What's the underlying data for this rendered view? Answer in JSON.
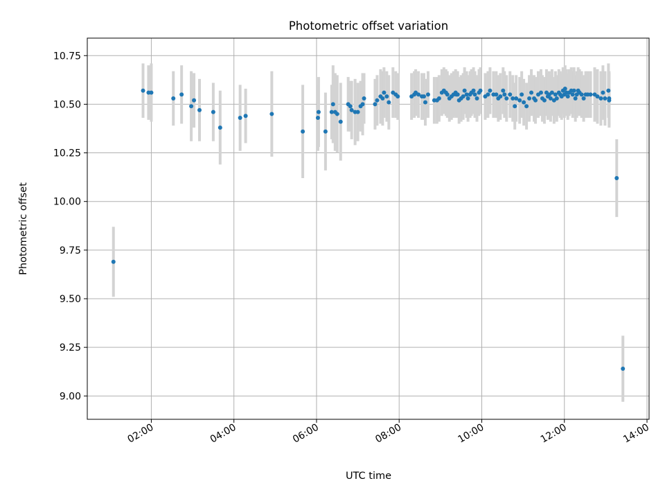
{
  "chart_data": {
    "type": "scatter",
    "title": "Photometric offset variation",
    "xlabel": "UTC time",
    "ylabel": "Photometric offset",
    "x_axis": "time (HH:MM)",
    "xlim": [
      "00:27",
      "14:03"
    ],
    "ylim": [
      8.88,
      10.84
    ],
    "x_ticks": [
      "02:00",
      "04:00",
      "06:00",
      "08:00",
      "10:00",
      "12:00",
      "14:00"
    ],
    "y_ticks": [
      9.0,
      9.25,
      9.5,
      9.75,
      10.0,
      10.25,
      10.5,
      10.75
    ],
    "grid": true,
    "marker_color": "#1f77b4",
    "errorbar_color": "#d3d3d3",
    "series": [
      {
        "x": [
          "01:05",
          "01:48",
          "01:56",
          "02:00",
          "02:32",
          "02:44",
          "02:58",
          "03:02",
          "03:10",
          "03:30",
          "03:40",
          "04:09",
          "04:17",
          "04:55",
          "05:40",
          "06:02",
          "06:03",
          "06:13",
          "06:22",
          "06:24",
          "06:27",
          "06:30",
          "06:35",
          "06:46",
          "06:49",
          "06:51",
          "06:56",
          "07:00",
          "07:04",
          "07:07",
          "07:09",
          "07:25",
          "07:28",
          "07:33",
          "07:36",
          "07:38",
          "07:42",
          "07:45",
          "07:51",
          "07:55",
          "07:58",
          "08:18",
          "08:22",
          "08:24",
          "08:28",
          "08:33",
          "08:36",
          "08:38",
          "08:42",
          "08:51",
          "08:55",
          "08:58",
          "09:02",
          "09:05",
          "09:08",
          "09:10",
          "09:13",
          "09:16",
          "09:19",
          "09:22",
          "09:23",
          "09:25",
          "09:27",
          "09:30",
          "09:33",
          "09:35",
          "09:38",
          "09:40",
          "09:43",
          "09:45",
          "09:48",
          "09:50",
          "09:53",
          "09:56",
          "09:58",
          "10:05",
          "10:09",
          "10:12",
          "10:17",
          "10:21",
          "10:24",
          "10:27",
          "10:31",
          "10:33",
          "10:36",
          "10:41",
          "10:45",
          "10:48",
          "10:50",
          "10:55",
          "10:58",
          "11:01",
          "11:05",
          "11:09",
          "11:12",
          "11:16",
          "11:18",
          "11:22",
          "11:26",
          "11:28",
          "11:31",
          "11:34",
          "11:36",
          "11:38",
          "11:40",
          "11:42",
          "11:45",
          "11:47",
          "11:49",
          "11:52",
          "11:54",
          "11:56",
          "11:58",
          "12:00",
          "12:01",
          "12:03",
          "12:05",
          "12:07",
          "12:10",
          "12:12",
          "12:14",
          "12:16",
          "12:18",
          "12:20",
          "12:22",
          "12:25",
          "12:28",
          "12:31",
          "12:34",
          "12:38",
          "12:44",
          "12:48",
          "12:53",
          "12:56",
          "12:59",
          "13:04",
          "13:05",
          "13:05",
          "13:16",
          "13:25"
        ],
        "y": [
          9.69,
          10.57,
          10.56,
          10.56,
          10.53,
          10.55,
          10.49,
          10.52,
          10.47,
          10.46,
          10.38,
          10.43,
          10.44,
          10.45,
          10.36,
          10.43,
          10.46,
          10.36,
          10.46,
          10.5,
          10.46,
          10.45,
          10.41,
          10.5,
          10.49,
          10.47,
          10.46,
          10.46,
          10.49,
          10.5,
          10.53,
          10.5,
          10.52,
          10.54,
          10.53,
          10.56,
          10.54,
          10.51,
          10.56,
          10.55,
          10.54,
          10.54,
          10.55,
          10.56,
          10.55,
          10.54,
          10.54,
          10.51,
          10.55,
          10.52,
          10.52,
          10.53,
          10.56,
          10.57,
          10.56,
          10.55,
          10.53,
          10.54,
          10.55,
          10.56,
          10.55,
          10.55,
          10.52,
          10.53,
          10.54,
          10.57,
          10.55,
          10.53,
          10.55,
          10.56,
          10.57,
          10.55,
          10.53,
          10.56,
          10.57,
          10.54,
          10.55,
          10.57,
          10.55,
          10.55,
          10.53,
          10.54,
          10.57,
          10.55,
          10.53,
          10.55,
          10.53,
          10.49,
          10.53,
          10.52,
          10.55,
          10.51,
          10.49,
          10.53,
          10.56,
          10.53,
          10.52,
          10.55,
          10.56,
          10.53,
          10.52,
          10.56,
          10.54,
          10.55,
          10.53,
          10.56,
          10.52,
          10.55,
          10.53,
          10.56,
          10.55,
          10.54,
          10.57,
          10.55,
          10.58,
          10.56,
          10.54,
          10.56,
          10.57,
          10.55,
          10.57,
          10.53,
          10.55,
          10.57,
          10.56,
          10.55,
          10.53,
          10.55,
          10.55,
          10.55,
          10.55,
          10.54,
          10.53,
          10.56,
          10.53,
          10.57,
          10.53,
          10.52,
          10.12,
          9.14
        ],
        "yerr": [
          0.18,
          0.14,
          0.14,
          0.15,
          0.14,
          0.15,
          0.18,
          0.14,
          0.16,
          0.15,
          0.19,
          0.17,
          0.14,
          0.22,
          0.24,
          0.17,
          0.18,
          0.2,
          0.14,
          0.2,
          0.2,
          0.2,
          0.2,
          0.14,
          0.13,
          0.15,
          0.17,
          0.15,
          0.13,
          0.16,
          0.13,
          0.13,
          0.13,
          0.14,
          0.14,
          0.13,
          0.13,
          0.14,
          0.13,
          0.12,
          0.12,
          0.12,
          0.12,
          0.12,
          0.12,
          0.12,
          0.12,
          0.12,
          0.12,
          0.12,
          0.12,
          0.12,
          0.12,
          0.12,
          0.12,
          0.12,
          0.12,
          0.12,
          0.12,
          0.12,
          0.12,
          0.12,
          0.12,
          0.12,
          0.12,
          0.12,
          0.12,
          0.12,
          0.12,
          0.12,
          0.12,
          0.12,
          0.12,
          0.12,
          0.12,
          0.12,
          0.12,
          0.12,
          0.12,
          0.12,
          0.12,
          0.12,
          0.12,
          0.12,
          0.12,
          0.12,
          0.12,
          0.12,
          0.12,
          0.12,
          0.12,
          0.12,
          0.12,
          0.12,
          0.12,
          0.12,
          0.12,
          0.12,
          0.12,
          0.12,
          0.12,
          0.12,
          0.12,
          0.12,
          0.12,
          0.12,
          0.12,
          0.12,
          0.12,
          0.12,
          0.12,
          0.12,
          0.12,
          0.12,
          0.12,
          0.12,
          0.12,
          0.12,
          0.12,
          0.12,
          0.12,
          0.12,
          0.12,
          0.12,
          0.12,
          0.12,
          0.12,
          0.12,
          0.12,
          0.12,
          0.14,
          0.14,
          0.14,
          0.14,
          0.14,
          0.14,
          0.14,
          0.14,
          0.2,
          0.17
        ]
      }
    ]
  }
}
